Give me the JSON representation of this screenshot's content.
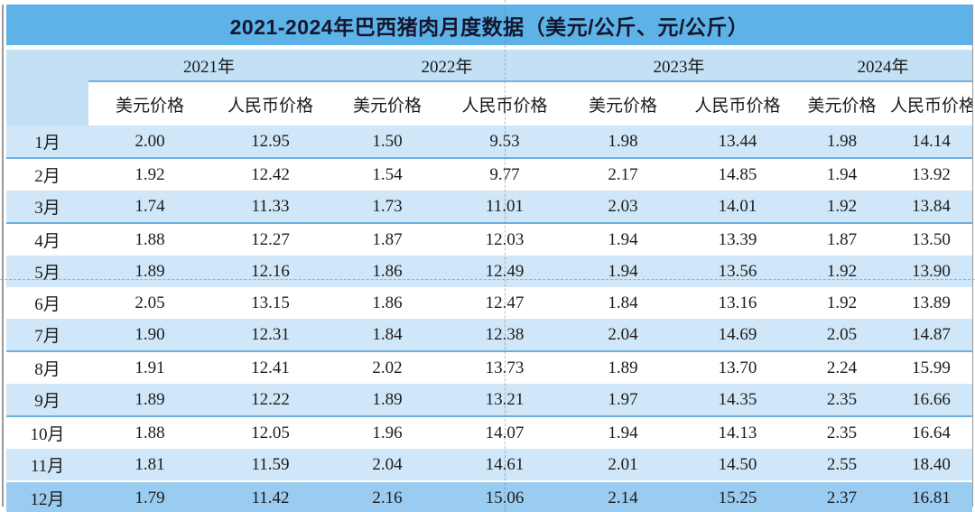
{
  "title": "2021-2024年巴西猪肉月度数据（美元/公斤、元/公斤）",
  "colors": {
    "title_bar": "#5db3e8",
    "title_text": "#15162e",
    "header_band": "#c3e0f5",
    "row_blue": "#cfe7f8",
    "row_white": "#ffffff",
    "row_last": "#9acbf0",
    "row_divider": "#6fb0e0",
    "subheader_divider": "#74b2e2",
    "table_bottom": "#1f3864",
    "side_border": "#999999"
  },
  "chart_data": {
    "type": "table",
    "title": "2021-2024年巴西猪肉月度数据（美元/公斤、元/公斤）",
    "unit_note": "美元/公斤、元/公斤",
    "year_groups": [
      "2021年",
      "2022年",
      "2023年",
      "2024年"
    ],
    "sub_columns": [
      "美元价格",
      "人民币价格"
    ],
    "months": [
      "1月",
      "2月",
      "3月",
      "4月",
      "5月",
      "6月",
      "7月",
      "8月",
      "9月",
      "10月",
      "11月",
      "12月"
    ],
    "rows": [
      [
        "2.00",
        "12.95",
        "1.50",
        "9.53",
        "1.98",
        "13.44",
        "1.98",
        "14.14"
      ],
      [
        "1.92",
        "12.42",
        "1.54",
        "9.77",
        "2.17",
        "14.85",
        "1.94",
        "13.92"
      ],
      [
        "1.74",
        "11.33",
        "1.73",
        "11.01",
        "2.03",
        "14.01",
        "1.92",
        "13.84"
      ],
      [
        "1.88",
        "12.27",
        "1.87",
        "12.03",
        "1.94",
        "13.39",
        "1.87",
        "13.50"
      ],
      [
        "1.89",
        "12.16",
        "1.86",
        "12.49",
        "1.94",
        "13.56",
        "1.92",
        "13.90"
      ],
      [
        "2.05",
        "13.15",
        "1.86",
        "12.47",
        "1.84",
        "13.16",
        "1.92",
        "13.89"
      ],
      [
        "1.90",
        "12.31",
        "1.84",
        "12.38",
        "2.04",
        "14.69",
        "2.05",
        "14.87"
      ],
      [
        "1.91",
        "12.41",
        "2.02",
        "13.73",
        "1.89",
        "13.70",
        "2.24",
        "15.99"
      ],
      [
        "1.89",
        "12.22",
        "1.89",
        "13.21",
        "1.97",
        "14.35",
        "2.35",
        "16.66"
      ],
      [
        "1.88",
        "12.05",
        "1.96",
        "14.07",
        "1.94",
        "14.13",
        "2.35",
        "16.64"
      ],
      [
        "1.81",
        "11.59",
        "2.04",
        "14.61",
        "2.01",
        "14.50",
        "2.55",
        "18.40"
      ],
      [
        "1.79",
        "11.42",
        "2.16",
        "15.06",
        "2.14",
        "15.25",
        "2.37",
        "16.81"
      ]
    ]
  }
}
